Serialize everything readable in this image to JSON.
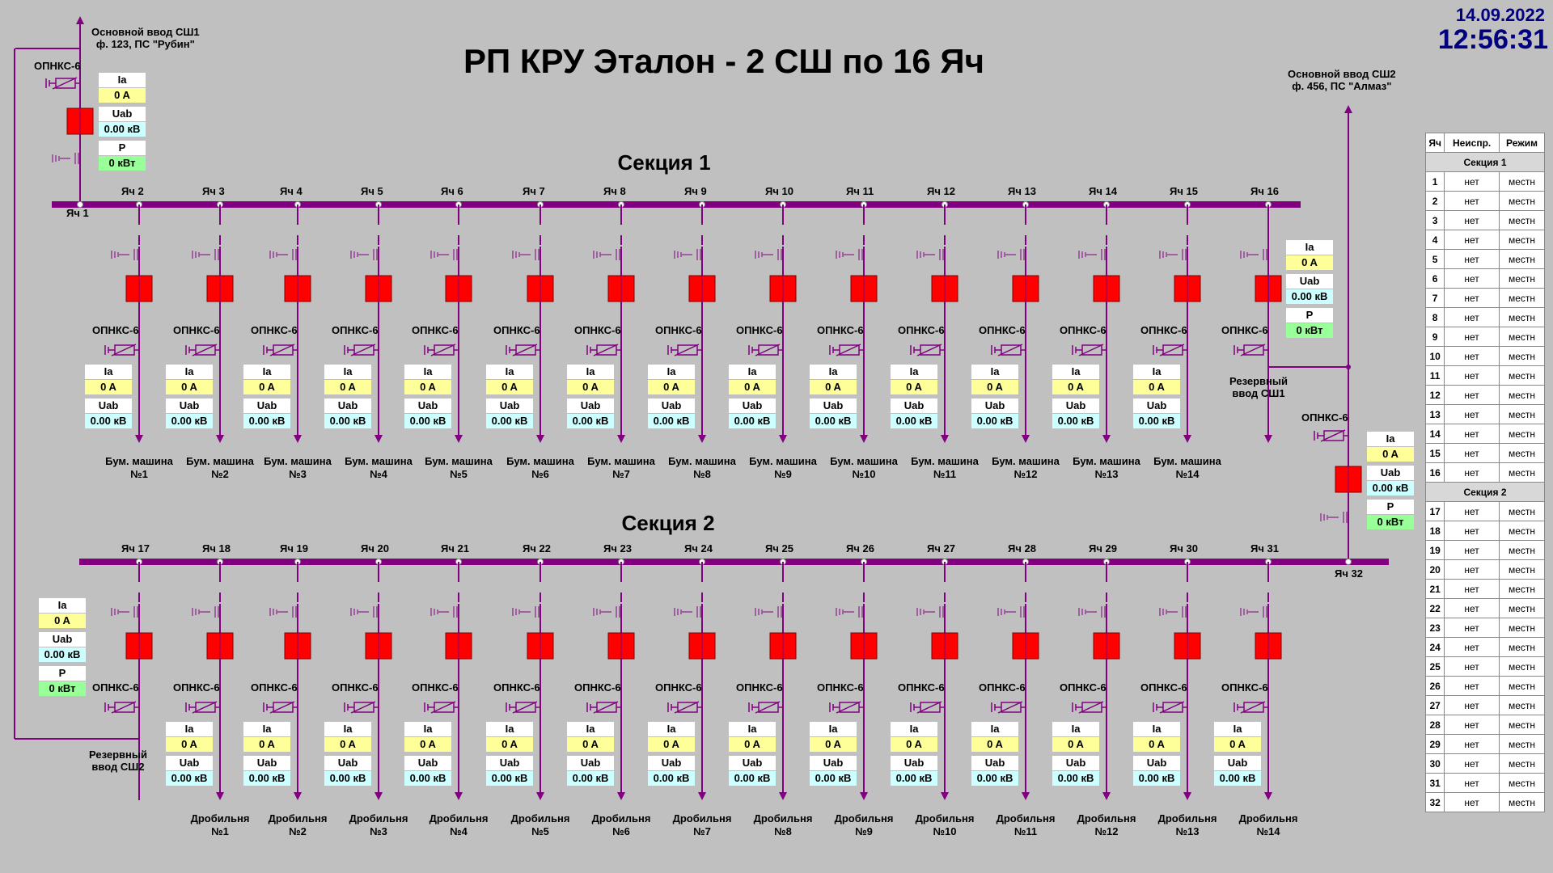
{
  "title": "РП КРУ Эталон - 2 СШ по 16 Яч",
  "date": "14.09.2022",
  "time": "12:56:31",
  "section1": "Секция 1",
  "section2": "Секция 2",
  "colors": {
    "bus": "#800080",
    "breaker": "#ff0000",
    "current": "#ffff99",
    "voltage": "#ccffff",
    "power": "#99ff99"
  },
  "input1": {
    "line1": "Основной ввод СШ1",
    "line2": "ф. 123, ПС \"Рубин\""
  },
  "input2": {
    "line1": "Основной ввод СШ2",
    "line2": "ф. 456, ПС \"Алмаз\""
  },
  "reserve1": {
    "line1": "Резервный",
    "line2": "ввод СШ1"
  },
  "reserve2": {
    "line1": "Резервный",
    "line2": "ввод СШ2"
  },
  "arrester": "ОПНКС-6",
  "labels": {
    "ia": "Ia",
    "uab": "Uab",
    "p": "P",
    "ia_val": "0 A",
    "uab_val": "0.00 кВ",
    "p_val": "0 кВт"
  },
  "cells": {
    "yach1": "Яч 1",
    "yach32": "Яч 32",
    "bus1": [
      "Яч 2",
      "Яч 3",
      "Яч 4",
      "Яч 5",
      "Яч 6",
      "Яч 7",
      "Яч 8",
      "Яч 9",
      "Яч 10",
      "Яч 11",
      "Яч 12",
      "Яч 13",
      "Яч 14",
      "Яч 15",
      "Яч 16"
    ],
    "bus2": [
      "Яч 17",
      "Яч 18",
      "Яч 19",
      "Яч 20",
      "Яч 21",
      "Яч 22",
      "Яч 23",
      "Яч 24",
      "Яч 25",
      "Яч 26",
      "Яч 27",
      "Яч 28",
      "Яч 29",
      "Яч 30",
      "Яч 31"
    ]
  },
  "feeders1": [
    [
      "Бум. машина",
      "№1"
    ],
    [
      "Бум. машина",
      "№2"
    ],
    [
      "Бум. машина",
      "№3"
    ],
    [
      "Бум. машина",
      "№4"
    ],
    [
      "Бум. машина",
      "№5"
    ],
    [
      "Бум. машина",
      "№6"
    ],
    [
      "Бум. машина",
      "№7"
    ],
    [
      "Бум. машина",
      "№8"
    ],
    [
      "Бум. машина",
      "№9"
    ],
    [
      "Бум. машина",
      "№10"
    ],
    [
      "Бум. машина",
      "№11"
    ],
    [
      "Бум. машина",
      "№12"
    ],
    [
      "Бум. машина",
      "№13"
    ],
    [
      "Бум. машина",
      "№14"
    ]
  ],
  "feeders2": [
    [
      "Дробильня",
      "№1"
    ],
    [
      "Дробильня",
      "№2"
    ],
    [
      "Дробильня",
      "№3"
    ],
    [
      "Дробильня",
      "№4"
    ],
    [
      "Дробильня",
      "№5"
    ],
    [
      "Дробильня",
      "№6"
    ],
    [
      "Дробильня",
      "№7"
    ],
    [
      "Дробильня",
      "№8"
    ],
    [
      "Дробильня",
      "№9"
    ],
    [
      "Дробильня",
      "№10"
    ],
    [
      "Дробильня",
      "№11"
    ],
    [
      "Дробильня",
      "№12"
    ],
    [
      "Дробильня",
      "№13"
    ],
    [
      "Дробильня",
      "№14"
    ]
  ],
  "status_table": {
    "headers": [
      "Яч",
      "Неиспр.",
      "Режим"
    ],
    "section1": "Секция 1",
    "section2": "Секция 2",
    "rows1": [
      [
        "1",
        "нет",
        "местн"
      ],
      [
        "2",
        "нет",
        "местн"
      ],
      [
        "3",
        "нет",
        "местн"
      ],
      [
        "4",
        "нет",
        "местн"
      ],
      [
        "5",
        "нет",
        "местн"
      ],
      [
        "6",
        "нет",
        "местн"
      ],
      [
        "7",
        "нет",
        "местн"
      ],
      [
        "8",
        "нет",
        "местн"
      ],
      [
        "9",
        "нет",
        "местн"
      ],
      [
        "10",
        "нет",
        "местн"
      ],
      [
        "11",
        "нет",
        "местн"
      ],
      [
        "12",
        "нет",
        "местн"
      ],
      [
        "13",
        "нет",
        "местн"
      ],
      [
        "14",
        "нет",
        "местн"
      ],
      [
        "15",
        "нет",
        "местн"
      ],
      [
        "16",
        "нет",
        "местн"
      ]
    ],
    "rows2": [
      [
        "17",
        "нет",
        "местн"
      ],
      [
        "18",
        "нет",
        "местн"
      ],
      [
        "19",
        "нет",
        "местн"
      ],
      [
        "20",
        "нет",
        "местн"
      ],
      [
        "21",
        "нет",
        "местн"
      ],
      [
        "22",
        "нет",
        "местн"
      ],
      [
        "23",
        "нет",
        "местн"
      ],
      [
        "24",
        "нет",
        "местн"
      ],
      [
        "25",
        "нет",
        "местн"
      ],
      [
        "26",
        "нет",
        "местн"
      ],
      [
        "27",
        "нет",
        "местн"
      ],
      [
        "28",
        "нет",
        "местн"
      ],
      [
        "29",
        "нет",
        "местн"
      ],
      [
        "30",
        "нет",
        "местн"
      ],
      [
        "31",
        "нет",
        "местн"
      ],
      [
        "32",
        "нет",
        "местн"
      ]
    ]
  }
}
